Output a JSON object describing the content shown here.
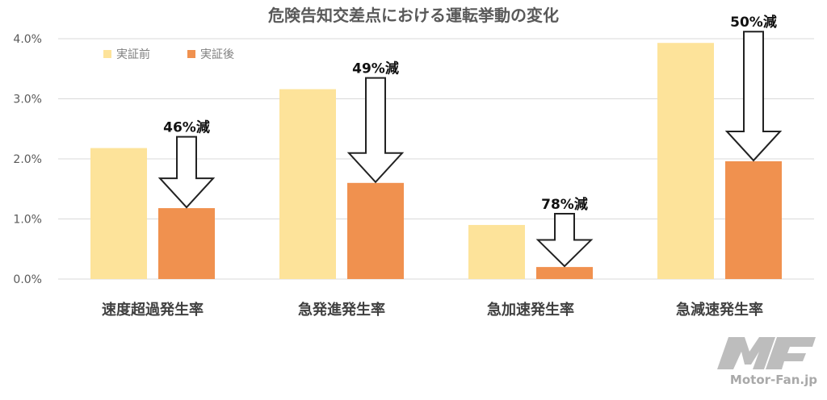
{
  "colors": {
    "before": "#FDE39A",
    "after": "#F0914F"
  },
  "chart_data": {
    "type": "bar",
    "title": "危険告知交差点における運転挙動の変化",
    "categories": [
      "速度超過発生率",
      "急発進発生率",
      "急加速発生率",
      "急減速発生率"
    ],
    "series": [
      {
        "name": "実証前",
        "values": [
          2.18,
          3.16,
          0.9,
          3.93
        ]
      },
      {
        "name": "実証後",
        "values": [
          1.18,
          1.6,
          0.2,
          1.96
        ]
      }
    ],
    "annotations": [
      "46%減",
      "49%減",
      "78%減",
      "50%減"
    ],
    "yticks": [
      "0.0%",
      "1.0%",
      "2.0%",
      "3.0%",
      "4.0%"
    ],
    "ylim": [
      0,
      4
    ],
    "grid": true,
    "legend": "top-left"
  },
  "watermark": {
    "text": "Motor-Fan.jp",
    "logo_text": "MF"
  }
}
